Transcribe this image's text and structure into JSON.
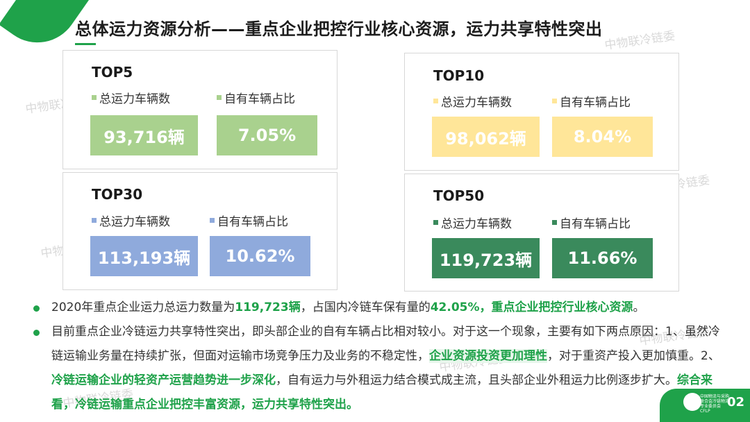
{
  "title": "总体运力资源分析——重点企业把控行业核心资源，运力共享特性突出",
  "watermark": "中物联冷链委",
  "legend_total_label": "总运力车辆数",
  "legend_own_label": "自有车辆占比",
  "cards": [
    {
      "title": "TOP5",
      "total": "93,716辆",
      "ratio": "7.05%",
      "color": "#a9d18e"
    },
    {
      "title": "TOP10",
      "total": "98,062辆",
      "ratio": "8.04%",
      "color": "#ffe699"
    },
    {
      "title": "TOP30",
      "total": "113,193辆",
      "ratio": "10.62%",
      "color": "#8faadc"
    },
    {
      "title": "TOP50",
      "total": "119,723辆",
      "ratio": "11.66%",
      "color": "#3a8a5c"
    }
  ],
  "bullet1": {
    "t1": "2020年重点企业运力总运力数量为",
    "h1": "119,723辆",
    "t2": "，占国内冷链车保有量的",
    "h2": "42.05%，重点企业把控行业核心资源",
    "t3": "。"
  },
  "bullet2": {
    "t1": "目前重点企业冷链运力共享特性突出，即头部企业的自有车辆占比相对较小。对于这一个现象，主要有如下两点原因：1、虽然冷链运输业务量在持续扩张，但面对运输市场竞争压力及业务的不稳定性，",
    "h1": "企业资源投资更加理性",
    "t2": "，对于重资产投入更加慎重。2、",
    "h2": "冷链运输企业的轻资产运营趋势进一步深化",
    "t3": "，自有运力与外租运力结合模式成主流，且头部企业外租运力比例逐步扩大。",
    "h3": "综合来看，冷链运输重点企业把控丰富资源，运力共享特性突出。"
  },
  "footer": {
    "org_text": "中国物流与采购联合会冷链物流专业委员会",
    "abbr": "CFLP",
    "page_number": "02"
  }
}
